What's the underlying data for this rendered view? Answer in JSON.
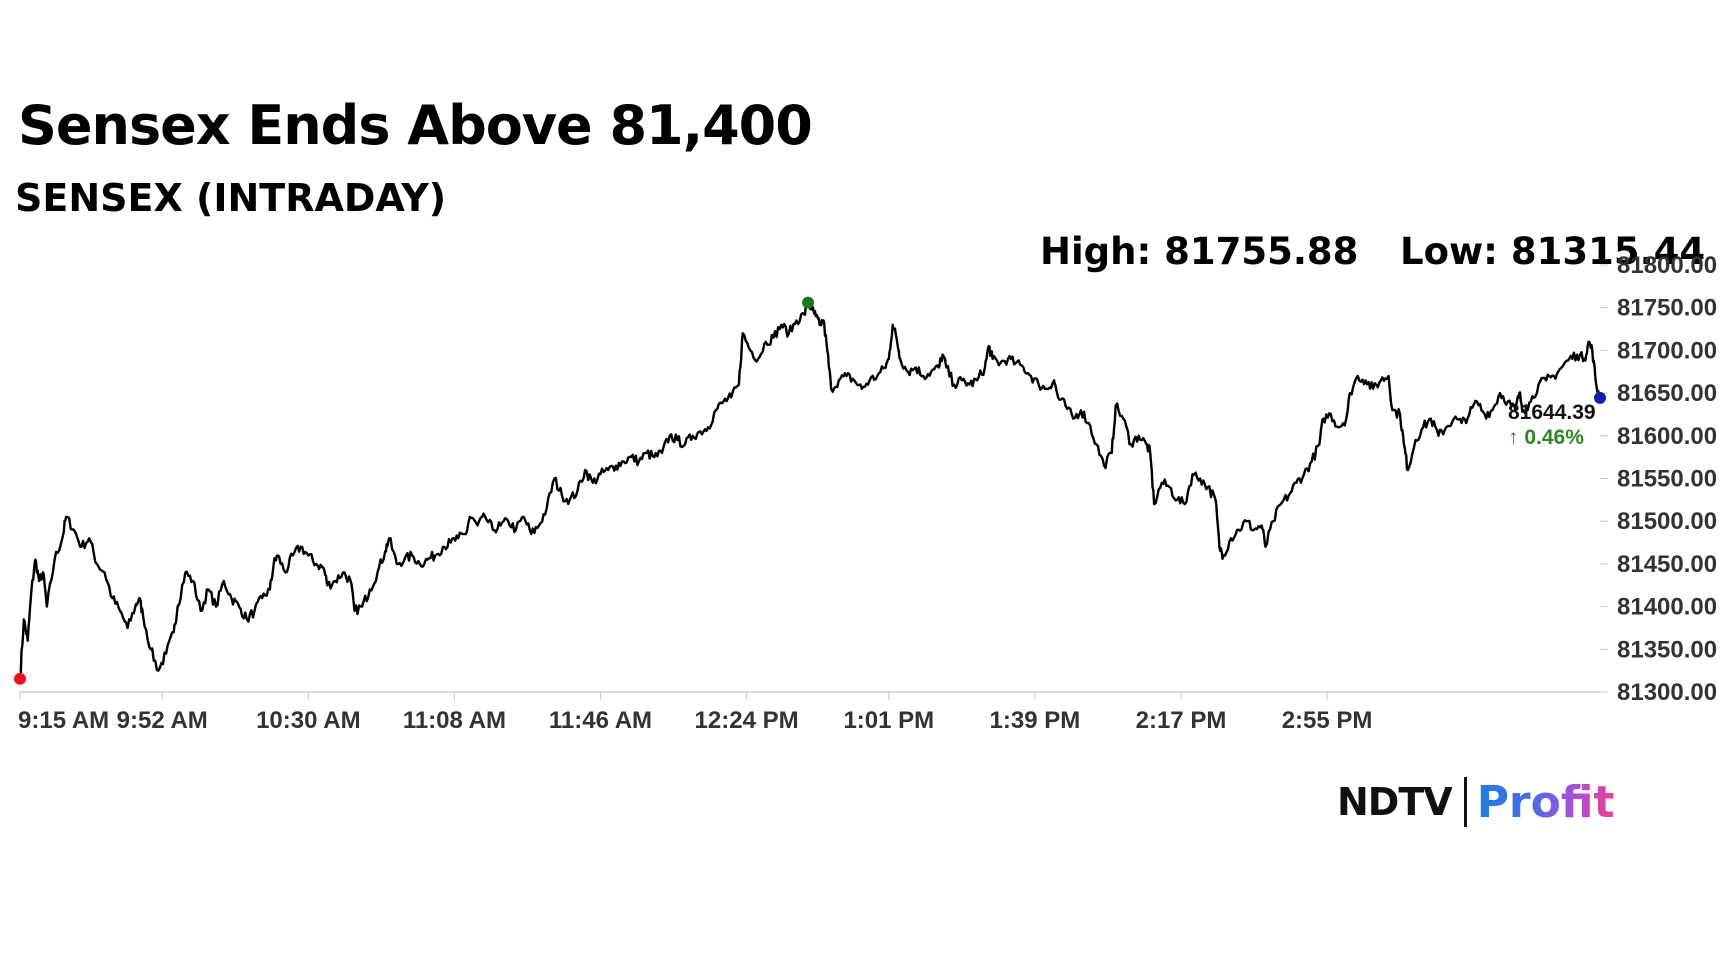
{
  "header": {
    "title": "Sensex Ends Above 81,400",
    "subtitle": "SENSEX (INTRADAY)"
  },
  "stats": {
    "high_label": "High: 81755.88",
    "low_label": "Low: 81315.44"
  },
  "last_price": {
    "value": "81644.39",
    "change": "↑ 0.46%"
  },
  "logo": {
    "brand": "NDTV",
    "product": "Profit"
  },
  "colors": {
    "line": "#000000",
    "high_marker": "#1a7a1a",
    "low_marker": "#e8141c",
    "last_marker": "#1a1ab0",
    "change_up": "#2a8a1f"
  },
  "chart_data": {
    "type": "line",
    "title": "SENSEX (INTRADAY)",
    "xlabel": "",
    "ylabel": "",
    "x_ticks": [
      "9:15 AM",
      "9:52 AM",
      "10:30 AM",
      "11:08 AM",
      "11:46 AM",
      "12:24 PM",
      "1:01 PM",
      "1:39 PM",
      "2:17 PM",
      "2:55 PM"
    ],
    "y_ticks": [
      "81300.00",
      "81350.00",
      "81400.00",
      "81450.00",
      "81500.00",
      "81550.00",
      "81600.00",
      "81650.00",
      "81700.00",
      "81750.00",
      "81800.00"
    ],
    "ylim": [
      81300,
      81800
    ],
    "x_range_minutes": [
      0,
      375
    ],
    "grid": false,
    "series": [
      {
        "points": [
          [
            0,
            81315
          ],
          [
            1,
            81385
          ],
          [
            2,
            81360
          ],
          [
            3,
            81420
          ],
          [
            4,
            81455
          ],
          [
            5,
            81430
          ],
          [
            6,
            81440
          ],
          [
            7,
            81400
          ],
          [
            9,
            81455
          ],
          [
            11,
            81480
          ],
          [
            12,
            81505
          ],
          [
            14,
            81490
          ],
          [
            16,
            81470
          ],
          [
            18,
            81480
          ],
          [
            20,
            81450
          ],
          [
            22,
            81440
          ],
          [
            24,
            81410
          ],
          [
            26,
            81395
          ],
          [
            28,
            81375
          ],
          [
            30,
            81400
          ],
          [
            31,
            81410
          ],
          [
            32,
            81390
          ],
          [
            34,
            81350
          ],
          [
            36,
            81325
          ],
          [
            38,
            81345
          ],
          [
            40,
            81370
          ],
          [
            41,
            81400
          ],
          [
            43,
            81440
          ],
          [
            45,
            81430
          ],
          [
            47,
            81395
          ],
          [
            49,
            81420
          ],
          [
            51,
            81400
          ],
          [
            53,
            81430
          ],
          [
            55,
            81410
          ],
          [
            57,
            81400
          ],
          [
            59,
            81385
          ],
          [
            61,
            81395
          ],
          [
            63,
            81410
          ],
          [
            65,
            81420
          ],
          [
            66,
            81450
          ],
          [
            67,
            81460
          ],
          [
            69,
            81440
          ],
          [
            71,
            81460
          ],
          [
            73,
            81470
          ],
          [
            75,
            81460
          ],
          [
            77,
            81450
          ],
          [
            79,
            81445
          ],
          [
            80,
            81425
          ],
          [
            82,
            81430
          ],
          [
            84,
            81440
          ],
          [
            86,
            81430
          ],
          [
            87,
            81395
          ],
          [
            89,
            81400
          ],
          [
            91,
            81420
          ],
          [
            93,
            81440
          ],
          [
            95,
            81465
          ],
          [
            96,
            81480
          ],
          [
            98,
            81450
          ],
          [
            100,
            81455
          ],
          [
            102,
            81460
          ],
          [
            104,
            81450
          ],
          [
            106,
            81455
          ],
          [
            108,
            81460
          ],
          [
            110,
            81470
          ],
          [
            112,
            81475
          ],
          [
            114,
            81480
          ],
          [
            116,
            81485
          ],
          [
            117,
            81505
          ],
          [
            119,
            81495
          ],
          [
            121,
            81505
          ],
          [
            123,
            81490
          ],
          [
            125,
            81495
          ],
          [
            127,
            81500
          ],
          [
            129,
            81490
          ],
          [
            131,
            81505
          ],
          [
            133,
            81485
          ],
          [
            135,
            81495
          ],
          [
            137,
            81515
          ],
          [
            139,
            81550
          ],
          [
            141,
            81530
          ],
          [
            143,
            81525
          ],
          [
            145,
            81535
          ],
          [
            147,
            81560
          ],
          [
            149,
            81545
          ],
          [
            151,
            81555
          ],
          [
            153,
            81560
          ],
          [
            155,
            81565
          ],
          [
            157,
            81570
          ],
          [
            159,
            81575
          ],
          [
            161,
            81570
          ],
          [
            163,
            81580
          ],
          [
            165,
            81575
          ],
          [
            167,
            81580
          ],
          [
            169,
            81600
          ],
          [
            171,
            81595
          ],
          [
            173,
            81590
          ],
          [
            175,
            81600
          ],
          [
            177,
            81605
          ],
          [
            179,
            81610
          ],
          [
            181,
            81630
          ],
          [
            183,
            81640
          ],
          [
            185,
            81645
          ],
          [
            187,
            81660
          ],
          [
            188,
            81720
          ],
          [
            190,
            81700
          ],
          [
            192,
            81690
          ],
          [
            194,
            81710
          ],
          [
            196,
            81715
          ],
          [
            198,
            81730
          ],
          [
            200,
            81720
          ],
          [
            202,
            81735
          ],
          [
            204,
            81742
          ],
          [
            205,
            81756
          ],
          [
            206,
            81748
          ],
          [
            207,
            81740
          ],
          [
            208,
            81730
          ],
          [
            209,
            81735
          ],
          [
            210,
            81700
          ],
          [
            211,
            81655
          ],
          [
            213,
            81665
          ],
          [
            215,
            81670
          ],
          [
            217,
            81665
          ],
          [
            219,
            81655
          ],
          [
            221,
            81665
          ],
          [
            223,
            81670
          ],
          [
            225,
            81680
          ],
          [
            226,
            81690
          ],
          [
            227,
            81730
          ],
          [
            228,
            81715
          ],
          [
            229,
            81690
          ],
          [
            231,
            81675
          ],
          [
            233,
            81680
          ],
          [
            235,
            81670
          ],
          [
            237,
            81675
          ],
          [
            239,
            81680
          ],
          [
            240,
            81695
          ],
          [
            241,
            81680
          ],
          [
            243,
            81660
          ],
          [
            245,
            81665
          ],
          [
            247,
            81660
          ],
          [
            249,
            81665
          ],
          [
            251,
            81680
          ],
          [
            252,
            81705
          ],
          [
            253,
            81690
          ],
          [
            255,
            81685
          ],
          [
            257,
            81690
          ],
          [
            259,
            81685
          ],
          [
            261,
            81680
          ],
          [
            263,
            81670
          ],
          [
            265,
            81660
          ],
          [
            267,
            81655
          ],
          [
            269,
            81665
          ],
          [
            270,
            81645
          ],
          [
            272,
            81635
          ],
          [
            274,
            81620
          ],
          [
            276,
            81630
          ],
          [
            278,
            81615
          ],
          [
            280,
            81590
          ],
          [
            282,
            81565
          ],
          [
            284,
            81580
          ],
          [
            285,
            81635
          ],
          [
            287,
            81620
          ],
          [
            289,
            81590
          ],
          [
            291,
            81600
          ],
          [
            293,
            81590
          ],
          [
            294,
            81580
          ],
          [
            295,
            81520
          ],
          [
            297,
            81545
          ],
          [
            299,
            81540
          ],
          [
            301,
            81525
          ],
          [
            303,
            81520
          ],
          [
            305,
            81555
          ],
          [
            307,
            81550
          ],
          [
            309,
            81540
          ],
          [
            311,
            81525
          ],
          [
            312,
            81470
          ],
          [
            313,
            81460
          ],
          [
            315,
            81480
          ],
          [
            317,
            81490
          ],
          [
            319,
            81500
          ],
          [
            321,
            81490
          ],
          [
            323,
            81495
          ],
          [
            324,
            81470
          ],
          [
            326,
            81500
          ],
          [
            328,
            81520
          ],
          [
            330,
            81530
          ],
          [
            332,
            81545
          ],
          [
            334,
            81555
          ],
          [
            336,
            81570
          ],
          [
            338,
            81590
          ],
          [
            339,
            81620
          ],
          [
            341,
            81625
          ],
          [
            343,
            81610
          ],
          [
            345,
            81620
          ],
          [
            346,
            81650
          ],
          [
            348,
            81670
          ],
          [
            350,
            81665
          ],
          [
            352,
            81655
          ],
          [
            354,
            81665
          ],
          [
            356,
            81670
          ],
          [
            357,
            81630
          ],
          [
            359,
            81625
          ],
          [
            360,
            81590
          ],
          [
            361,
            81560
          ],
          [
            363,
            81595
          ],
          [
            365,
            81610
          ],
          [
            367,
            81620
          ],
          [
            369,
            81600
          ],
          [
            371,
            81610
          ],
          [
            373,
            81620
          ],
          [
            375,
            81615
          ],
          [
            377,
            81625
          ],
          [
            379,
            81640
          ],
          [
            381,
            81625
          ],
          [
            383,
            81630
          ],
          [
            385,
            81650
          ],
          [
            387,
            81640
          ],
          [
            389,
            81630
          ],
          [
            390,
            81650
          ],
          [
            391,
            81630
          ],
          [
            393,
            81640
          ],
          [
            395,
            81660
          ],
          [
            397,
            81665
          ],
          [
            399,
            81670
          ],
          [
            401,
            81680
          ],
          [
            403,
            81690
          ],
          [
            405,
            81695
          ],
          [
            407,
            81690
          ],
          [
            408,
            81710
          ],
          [
            409,
            81700
          ],
          [
            410,
            81660
          ],
          [
            411,
            81644
          ]
        ]
      }
    ],
    "high": {
      "minute": 205,
      "value": 81755.88
    },
    "low": {
      "minute": 0,
      "value": 81315.44
    },
    "last": {
      "minute": 411,
      "value": 81644.39
    }
  }
}
